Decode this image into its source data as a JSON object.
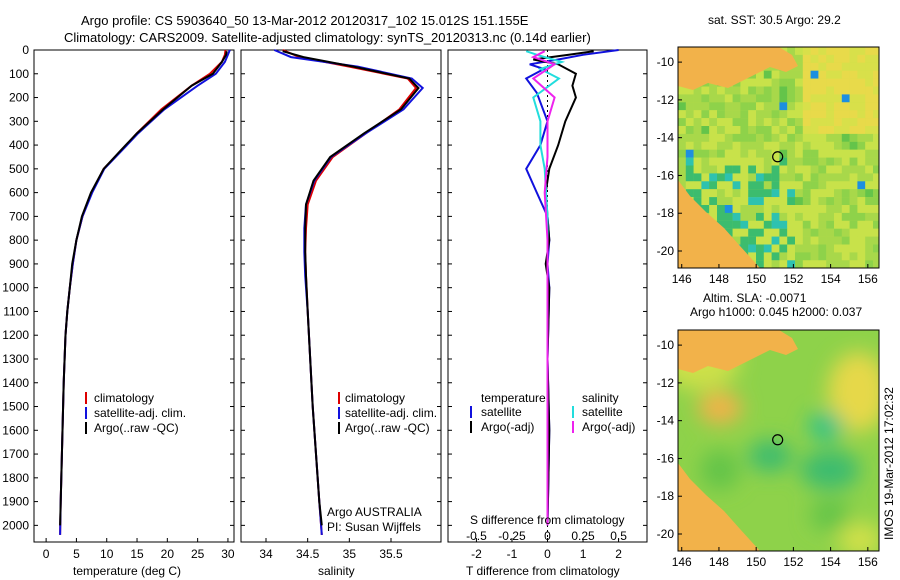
{
  "title_line1": "Argo profile: CS 5903640_50 13-Mar-2012 20120317_102 15.012S 151.155E",
  "title_line2": "Climatology: CARS2009. Satellite-adjusted climatology: synTS_20120313.nc (0.14d earlier)",
  "side_label": "IMOS 19-Mar-2012 17:02:32",
  "colors": {
    "clim": "#dd0000",
    "sat": "#1111dd",
    "argo": "#000000",
    "sal_sat": "#22dddd",
    "sal_argo": "#ee22ee"
  },
  "chart_data": [
    {
      "type": "line",
      "name": "temperature-profile",
      "xlabel": "temperature (deg C)",
      "ylabel": "",
      "xlim": [
        -2,
        31
      ],
      "ylim": [
        2070,
        0
      ],
      "xticks": [
        0,
        5,
        10,
        15,
        20,
        25,
        30
      ],
      "yticks": [
        0,
        100,
        200,
        300,
        400,
        500,
        600,
        700,
        800,
        900,
        1000,
        1100,
        1200,
        1300,
        1400,
        1500,
        1600,
        1700,
        1800,
        1900,
        2000
      ],
      "legend": [
        "climatology",
        "satellite-adj. clim.",
        "Argo(..raw -QC)"
      ],
      "series": [
        {
          "name": "climatology",
          "color_key": "clim",
          "x": [
            29.6,
            29.5,
            29,
            27,
            24,
            19,
            15,
            12.5,
            9.5,
            7.5,
            6,
            5,
            4.4,
            3.9,
            3.5,
            3.2,
            2.9,
            2.6,
            2.4,
            2.3
          ],
          "y": [
            0,
            20,
            50,
            100,
            150,
            250,
            350,
            420,
            500,
            600,
            700,
            800,
            900,
            1000,
            1100,
            1200,
            1400,
            1700,
            1900,
            2040
          ]
        },
        {
          "name": "satellite-adj. clim.",
          "color_key": "sat",
          "x": [
            30.3,
            30,
            29.5,
            28,
            25,
            19.5,
            15.2,
            12.6,
            9.6,
            7.6,
            6,
            5,
            4.4,
            3.9,
            3.5,
            3.2,
            2.9,
            2.6,
            2.4,
            2.3
          ],
          "y": [
            0,
            20,
            50,
            100,
            150,
            250,
            350,
            420,
            500,
            600,
            700,
            800,
            900,
            1000,
            1100,
            1200,
            1400,
            1700,
            1900,
            2040
          ]
        },
        {
          "name": "Argo",
          "color_key": "argo",
          "x": [
            29.8,
            29.7,
            29,
            27.5,
            24,
            19.3,
            15,
            12.4,
            9.5,
            7.4,
            5.9,
            5,
            4.3,
            3.9,
            3.5,
            3.2,
            2.9,
            2.6,
            2.4,
            2.3
          ],
          "y": [
            5,
            20,
            50,
            100,
            150,
            250,
            350,
            420,
            500,
            600,
            700,
            800,
            900,
            1000,
            1100,
            1200,
            1400,
            1700,
            1900,
            2000
          ]
        }
      ]
    },
    {
      "type": "line",
      "name": "salinity-profile",
      "xlabel": "salinity",
      "xlim": [
        33.7,
        36.1
      ],
      "ylim": [
        2070,
        0
      ],
      "xticks": [
        34,
        34.5,
        35,
        35.5
      ],
      "legend": [
        "climatology",
        "satellite-adj. clim.",
        "Argo(..raw -QC)"
      ],
      "inst_line1": "Argo AUSTRALIA",
      "inst_line2": "PI: Susan Wijffels",
      "series": [
        {
          "name": "climatology",
          "color_key": "clim",
          "x": [
            34.2,
            34.4,
            35.0,
            35.7,
            35.8,
            35.6,
            35.2,
            34.8,
            34.6,
            34.5,
            34.48,
            34.47,
            34.48,
            34.5,
            34.53,
            34.56,
            34.6,
            34.64,
            34.67
          ],
          "y": [
            0,
            30,
            70,
            120,
            160,
            250,
            350,
            450,
            550,
            650,
            750,
            850,
            950,
            1100,
            1300,
            1500,
            1700,
            1900,
            2040
          ]
        },
        {
          "name": "satellite-adj. clim.",
          "color_key": "sat",
          "x": [
            34.1,
            34.3,
            35.1,
            35.75,
            35.88,
            35.65,
            35.2,
            34.78,
            34.58,
            34.48,
            34.46,
            34.46,
            34.47,
            34.5,
            34.53,
            34.56,
            34.6,
            34.64,
            34.67
          ],
          "y": [
            0,
            30,
            70,
            120,
            160,
            250,
            350,
            450,
            550,
            650,
            750,
            850,
            950,
            1100,
            1300,
            1500,
            1700,
            1900,
            2040
          ]
        },
        {
          "name": "Argo",
          "color_key": "argo",
          "x": [
            34.2,
            34.45,
            35.05,
            35.72,
            35.83,
            35.62,
            35.18,
            34.77,
            34.57,
            34.48,
            34.47,
            34.47,
            34.48,
            34.5,
            34.53,
            34.56,
            34.6,
            34.64,
            34.67
          ],
          "y": [
            5,
            30,
            70,
            120,
            160,
            250,
            350,
            450,
            550,
            650,
            750,
            850,
            950,
            1100,
            1300,
            1500,
            1700,
            1900,
            2000
          ]
        }
      ]
    },
    {
      "type": "line",
      "name": "difference-profile",
      "xlabel": "T difference from climatology",
      "xlabel_top": "S difference from climatology",
      "xlim": [
        -2.8,
        2.8
      ],
      "xlim_top": [
        -0.7,
        0.7
      ],
      "ylim": [
        2070,
        0
      ],
      "xticks": [
        -2,
        -1,
        0,
        1,
        2
      ],
      "xticks_top": [
        -0.5,
        -0.25,
        0,
        0.25,
        0.5
      ],
      "legend_temperature": "temperature",
      "legend_salinity": "salinity",
      "legend_items": [
        "satellite",
        "Argo(-adj)",
        "satellite",
        "Argo(-adj)"
      ],
      "series": [
        {
          "name": "T satellite",
          "color_key": "sat",
          "axis": "T",
          "x": [
            2,
            1,
            0.3,
            -0.5,
            -0.1,
            -0.6,
            -0.3,
            0,
            -0.2,
            -0.6,
            -0.3,
            0,
            0.05,
            0,
            0.05,
            0,
            0.05,
            0
          ],
          "y": [
            0,
            20,
            40,
            60,
            80,
            120,
            180,
            300,
            400,
            500,
            600,
            700,
            800,
            900,
            1000,
            1300,
            1600,
            2000
          ]
        },
        {
          "name": "T Argo",
          "color_key": "argo",
          "axis": "T",
          "x": [
            1.3,
            0.6,
            -0.4,
            0.3,
            0.8,
            0.7,
            0.8,
            0.5,
            0.3,
            0.05,
            -0.05,
            0,
            0.05,
            -0.05,
            0.05,
            0,
            0.05,
            0
          ],
          "y": [
            5,
            20,
            40,
            60,
            100,
            150,
            200,
            300,
            400,
            500,
            600,
            700,
            800,
            900,
            1000,
            1300,
            1600,
            2000
          ]
        },
        {
          "name": "S satellite",
          "color_key": "sal_sat",
          "axis": "S",
          "x": [
            -0.15,
            -0.05,
            0.1,
            -0.05,
            0.08,
            -0.1,
            -0.05,
            -0.05,
            -0.02,
            0,
            0,
            0,
            0,
            0
          ],
          "y": [
            5,
            25,
            50,
            80,
            120,
            200,
            300,
            400,
            500,
            700,
            900,
            1200,
            1600,
            2000
          ]
        },
        {
          "name": "S Argo",
          "color_key": "sal_argo",
          "axis": "S",
          "x": [
            -0.02,
            -0.1,
            0.05,
            -0.1,
            0.05,
            0,
            0,
            -0.02,
            0,
            0,
            0,
            0
          ],
          "y": [
            5,
            30,
            60,
            120,
            200,
            300,
            450,
            600,
            800,
            1100,
            1500,
            2000
          ]
        }
      ]
    },
    {
      "type": "heatmap",
      "name": "sst-map",
      "title": "sat. SST: 30.5 Argo: 29.2",
      "xlim": [
        145.8,
        156.6
      ],
      "ylim": [
        -20.9,
        -9.2
      ],
      "xticks": [
        146,
        148,
        150,
        152,
        154,
        156
      ],
      "yticks": [
        -10,
        -12,
        -14,
        -16,
        -18,
        -20
      ],
      "marker": [
        151.155,
        -15.012
      ]
    },
    {
      "type": "heatmap",
      "name": "sla-map",
      "title_line1": "Altim. SLA: -0.0071",
      "title_line2": "Argo h1000: 0.045 h2000: 0.037",
      "xlim": [
        145.8,
        156.6
      ],
      "ylim": [
        -20.9,
        -9.2
      ],
      "xticks": [
        146,
        148,
        150,
        152,
        154,
        156
      ],
      "yticks": [
        -10,
        -12,
        -14,
        -16,
        -18,
        -20
      ],
      "marker": [
        151.155,
        -15.012
      ]
    }
  ]
}
